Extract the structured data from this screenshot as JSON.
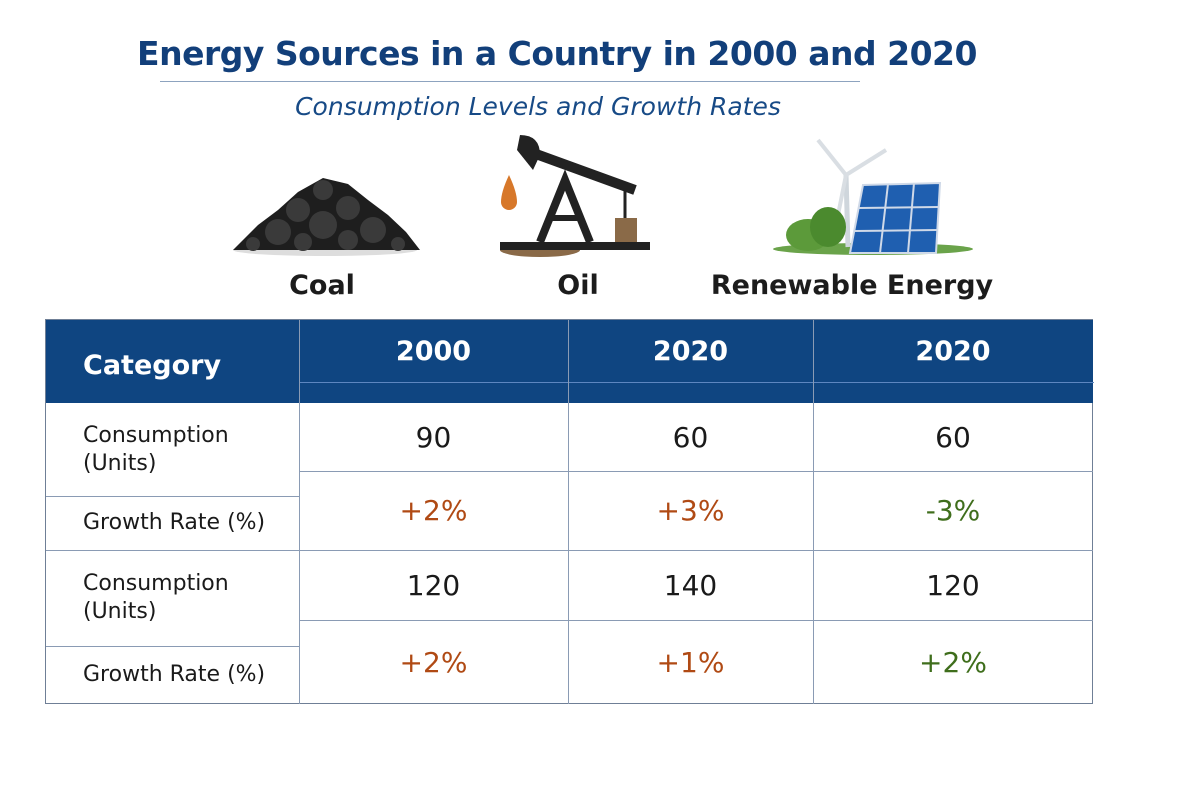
{
  "title": "Energy Sources in a Country in 2000 and 2020",
  "subtitle": "Consumption Levels and Growth Rates",
  "colors": {
    "header": "#0f4581",
    "positive_growth": "#b04a14",
    "negative_or_renewable_growth": "#3f6e1c",
    "title": "#123f7a"
  },
  "sources": [
    {
      "label": "Coal",
      "icon": "coal-pile-icon"
    },
    {
      "label": "Oil",
      "icon": "oil-pump-icon"
    },
    {
      "label": "Renewable Energy",
      "icon": "wind-solar-icon"
    }
  ],
  "chart_data": {
    "type": "table",
    "title": "Energy Sources in a Country in 2000 and 2020",
    "subtitle": "Consumption Levels and Growth Rates",
    "columns": [
      "Category",
      "2000",
      "2020",
      "2020"
    ],
    "rows": [
      {
        "label": "Consumption (Units)",
        "values": [
          "90",
          "60",
          "60"
        ]
      },
      {
        "label": "Growth Rate (%)",
        "values": [
          "+2%",
          "+3%",
          "-3%"
        ]
      },
      {
        "label": "Consumption (Units)",
        "values": [
          "120",
          "140",
          "120"
        ]
      },
      {
        "label": "Growth Rate (%)",
        "values": [
          "+2%",
          "+1%",
          "+2%"
        ]
      }
    ]
  }
}
